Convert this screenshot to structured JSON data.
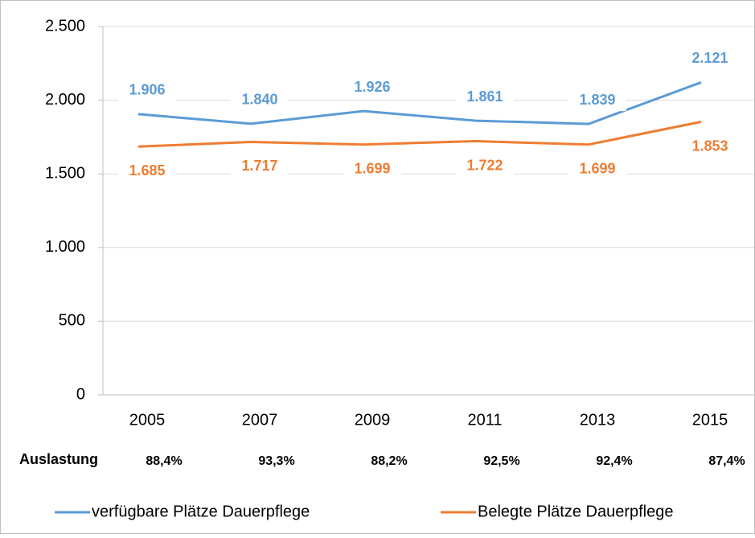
{
  "chart_data": {
    "type": "line",
    "categories": [
      "2005",
      "2007",
      "2009",
      "2011",
      "2013",
      "2015"
    ],
    "series": [
      {
        "name": "verfügbare Plätze Dauerpflege",
        "color": "#5b9bd5",
        "values": [
          1906,
          1840,
          1926,
          1861,
          1839,
          2121
        ],
        "value_labels": [
          "1.906",
          "1.840",
          "1.926",
          "1.861",
          "1.839",
          "2.121"
        ]
      },
      {
        "name": "Belegte Plätze Dauerpflege",
        "color": "#ed7d31",
        "values": [
          1685,
          1717,
          1699,
          1722,
          1699,
          1853
        ],
        "value_labels": [
          "1.685",
          "1.717",
          "1.699",
          "1.722",
          "1.699",
          "1.853"
        ]
      }
    ],
    "ylim": [
      0,
      2500
    ],
    "yticks": [
      0,
      500,
      {
        "value": 1000,
        "label": "1.000"
      },
      {
        "value": 1500,
        "label": "1.500"
      },
      {
        "value": 2000,
        "label": "2.000"
      },
      {
        "value": 2500,
        "label": "2.500"
      }
    ],
    "grid": true,
    "legend": "bottom",
    "utilization": {
      "label": "Auslastung",
      "values": [
        88.4,
        93.3,
        88.2,
        92.5,
        92.4,
        87.4
      ],
      "value_labels": [
        "88,4%",
        "93,3%",
        "88,2%",
        "92,5%",
        "92,4%",
        "87,4%"
      ]
    }
  }
}
